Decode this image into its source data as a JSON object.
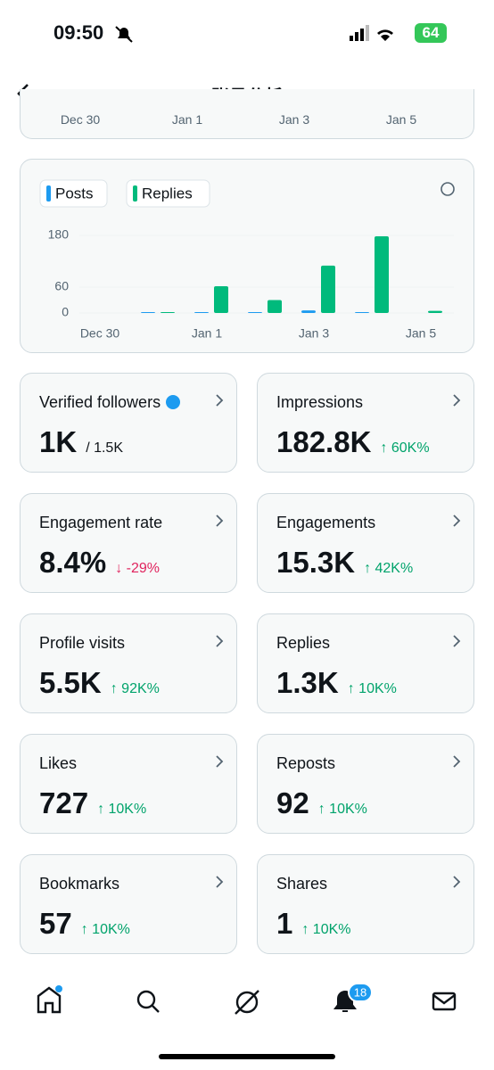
{
  "status_bar": {
    "time": "09:50",
    "battery": "64"
  },
  "header": {
    "title": "账号分析"
  },
  "previous_chart": {
    "x_labels": [
      "Dec 30",
      "Jan 1",
      "Jan 3",
      "Jan 5"
    ]
  },
  "chart_data": {
    "type": "bar",
    "categories": [
      "Dec 30",
      null,
      "Jan 1",
      null,
      "Jan 3",
      null,
      "Jan 5"
    ],
    "series": [
      {
        "name": "Posts",
        "color": "#1d9bf0",
        "values": [
          0,
          2,
          2,
          2,
          6,
          2,
          0
        ]
      },
      {
        "name": "Replies",
        "color": "#00ba7c",
        "values": [
          0,
          2,
          62,
          30,
          110,
          178,
          5
        ]
      }
    ],
    "ylim": [
      0,
      180
    ],
    "yticks": [
      0,
      60,
      180
    ],
    "grid": true
  },
  "metrics": [
    {
      "label": "Verified followers",
      "value": "1K",
      "total": "/ 1.5K"
    },
    {
      "label": "Impressions",
      "value": "182.8K",
      "change": "↑ 60K%",
      "change_color": "#00a36b"
    },
    {
      "label": "Engagement rate",
      "value": "8.4%",
      "change": "↓ -29%",
      "change_color": "#e0245e"
    },
    {
      "label": "Engagements",
      "value": "15.3K",
      "change": "↑ 42K%",
      "change_color": "#00a36b"
    },
    {
      "label": "Profile visits",
      "value": "5.5K",
      "change": "↑ 92K%",
      "change_color": "#00a36b"
    },
    {
      "label": "Replies",
      "value": "1.3K",
      "change": "↑ 10K%",
      "change_color": "#00a36b"
    },
    {
      "label": "Likes",
      "value": "727",
      "change": "↑ 10K%",
      "change_color": "#00a36b"
    },
    {
      "label": "Reposts",
      "value": "92",
      "change": "↑ 10K%",
      "change_color": "#00a36b"
    },
    {
      "label": "Bookmarks",
      "value": "57",
      "change": "↑ 10K%",
      "change_color": "#00a36b"
    },
    {
      "label": "Shares",
      "value": "1",
      "change": "↑ 10K%",
      "change_color": "#00a36b"
    }
  ],
  "bottom_nav": {
    "notifications_badge": "18"
  }
}
